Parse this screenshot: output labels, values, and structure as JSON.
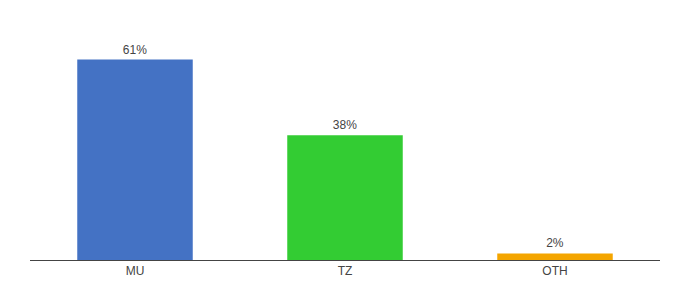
{
  "chart_data": {
    "type": "bar",
    "categories": [
      "MU",
      "TZ",
      "OTH"
    ],
    "values": [
      61,
      38,
      2
    ],
    "value_labels": [
      "61%",
      "38%",
      "2%"
    ],
    "colors": [
      "#4472c4",
      "#33cc33",
      "#f4a500"
    ],
    "ylim": [
      0,
      70
    ],
    "data_labels": true,
    "grid": false,
    "tick_labels": "x"
  }
}
